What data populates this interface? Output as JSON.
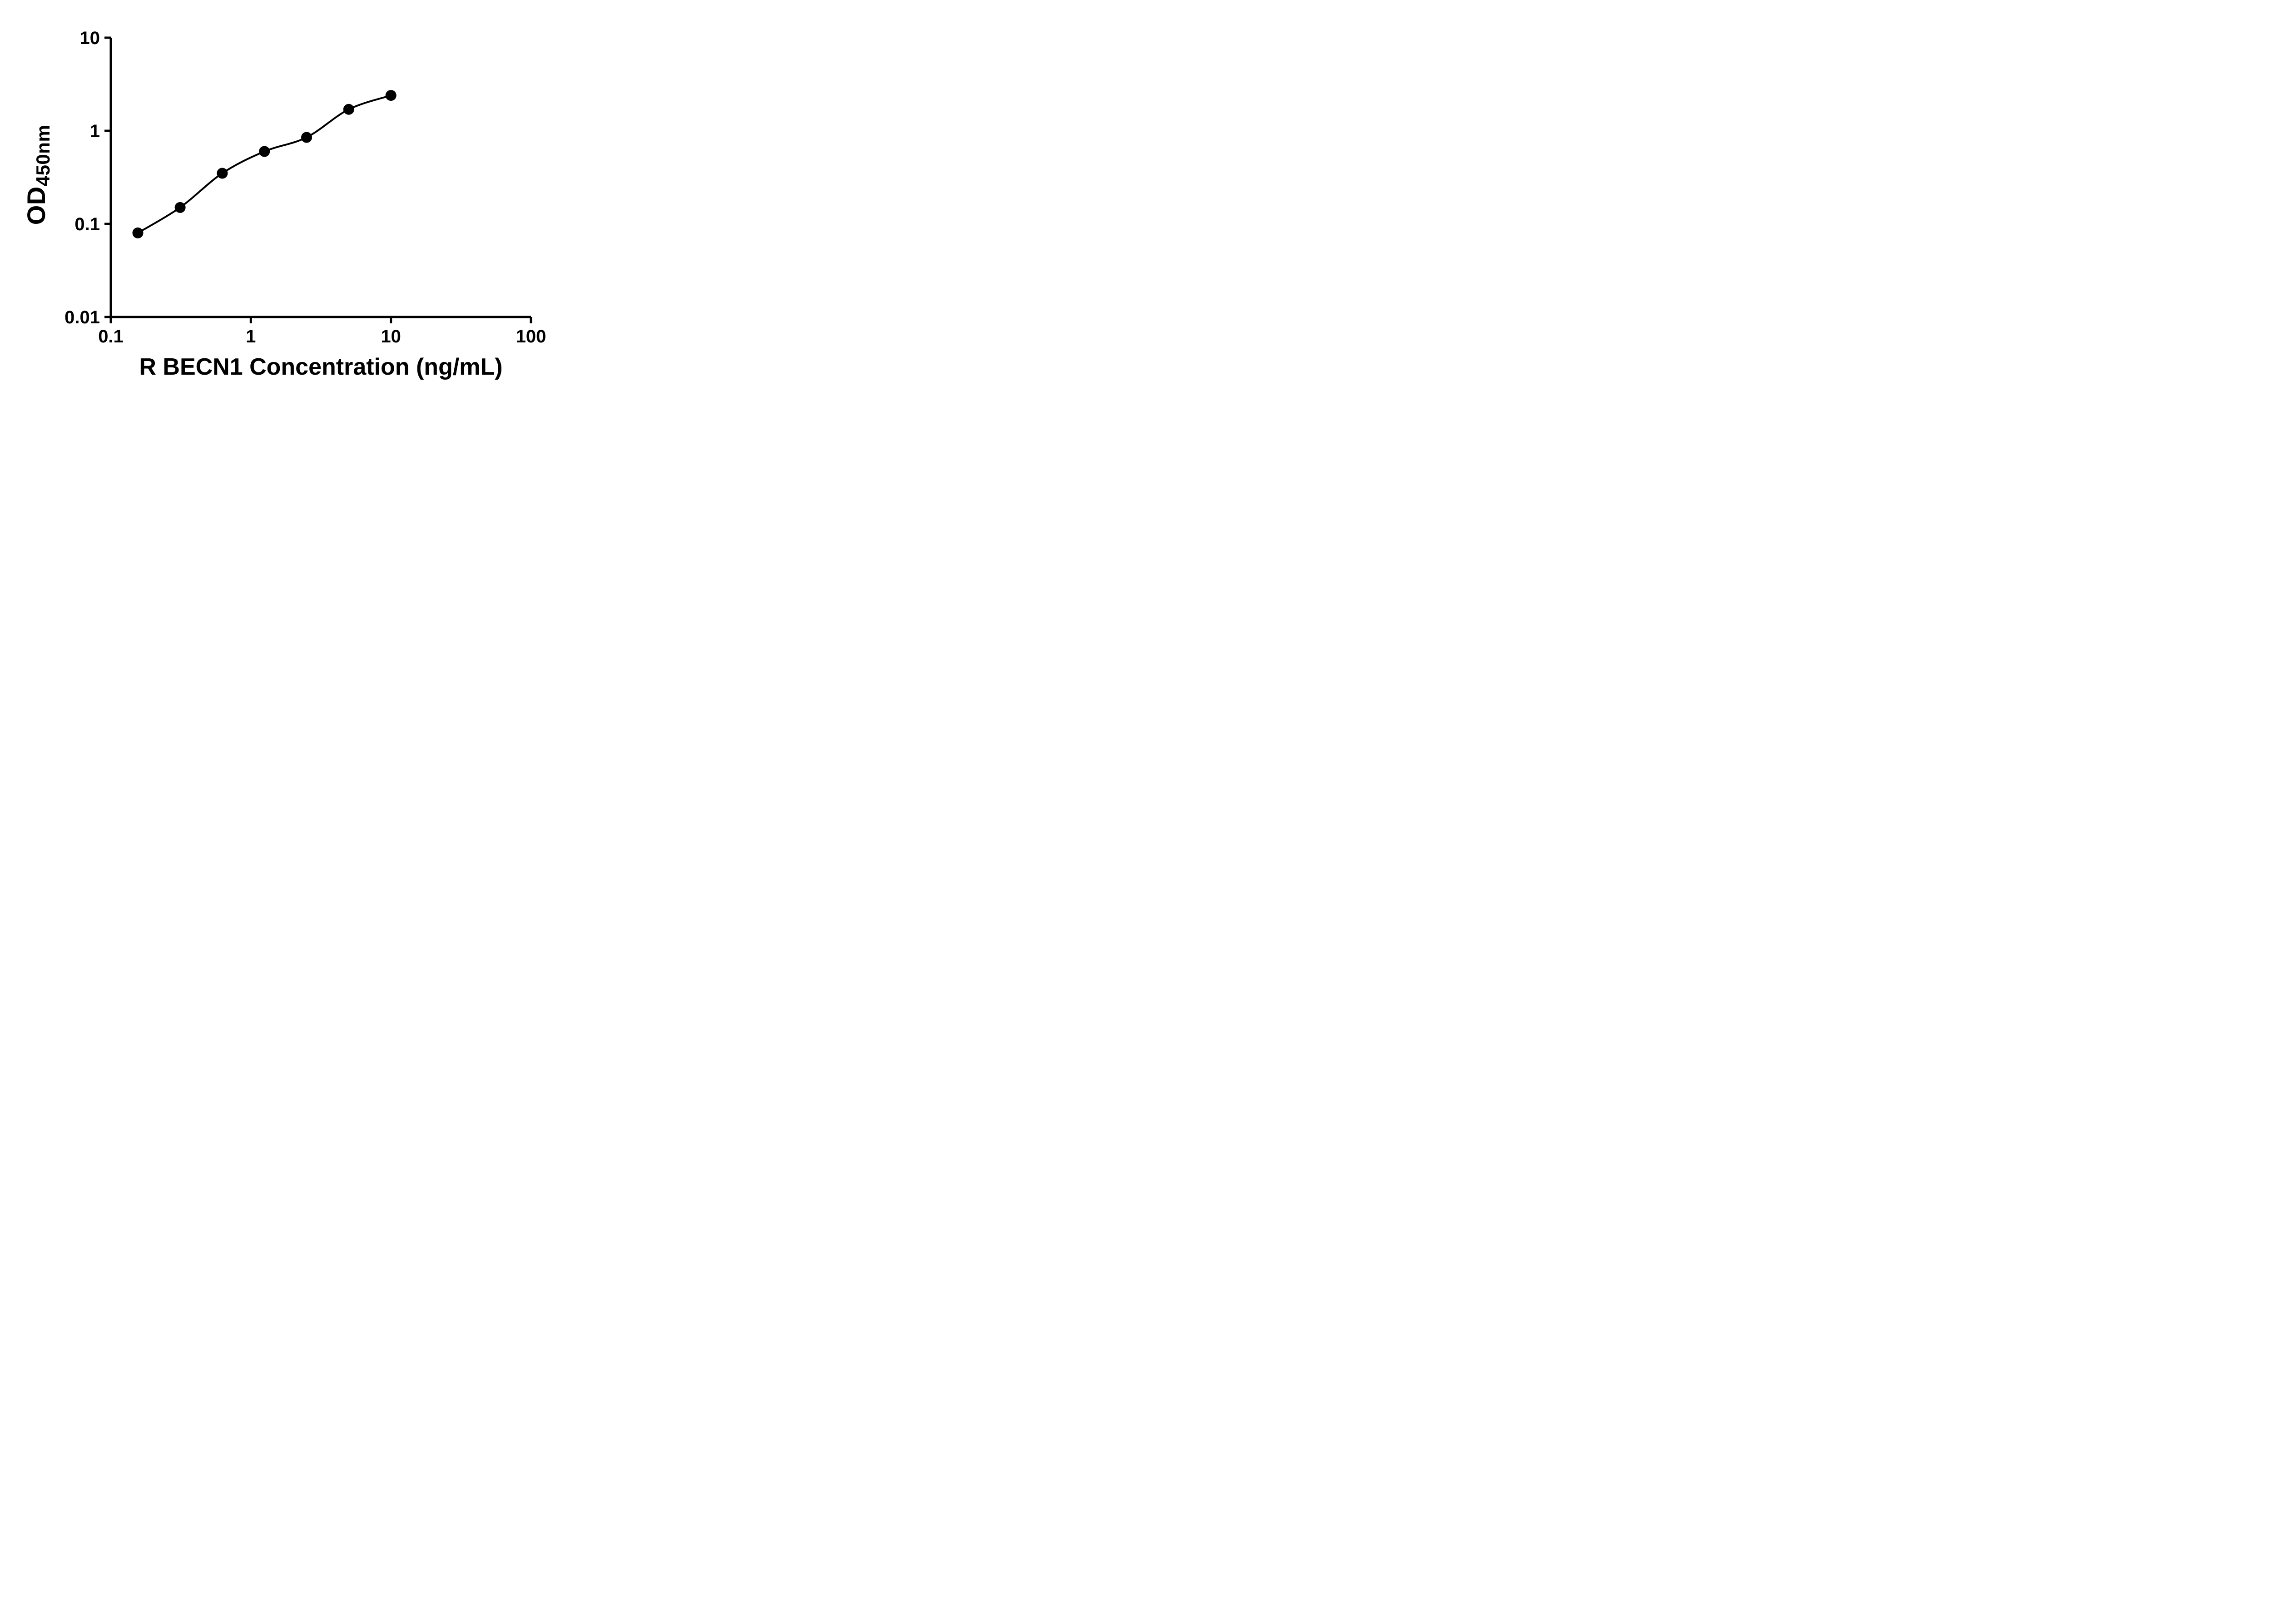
{
  "chart_data": {
    "type": "scatter",
    "title": "",
    "xlabel": "R BECN1 Concentration (ng/mL)",
    "ylabel": "OD450nm",
    "ylabel_main": "OD",
    "ylabel_sub": "450nm",
    "xscale": "log",
    "yscale": "log",
    "xlim": [
      0.1,
      100
    ],
    "ylim": [
      0.01,
      10
    ],
    "xticks": [
      0.1,
      1,
      10,
      100
    ],
    "xtick_labels": [
      "0.1",
      "1",
      "10",
      "100"
    ],
    "yticks": [
      0.01,
      0.1,
      1,
      10
    ],
    "ytick_labels": [
      "0.01",
      "0.1",
      "1",
      "10"
    ],
    "x": [
      0.156,
      0.3125,
      0.625,
      1.25,
      2.5,
      5,
      10
    ],
    "y": [
      0.08,
      0.15,
      0.35,
      0.6,
      0.85,
      1.7,
      2.4
    ],
    "curve": "smooth fit line through all data points",
    "marker": "filled-circle",
    "marker_color": "#000000",
    "line_color": "#000000",
    "axis_color": "#000000",
    "text_color": "#000000",
    "background_color": "#ffffff",
    "grid": false,
    "legend": false
  }
}
